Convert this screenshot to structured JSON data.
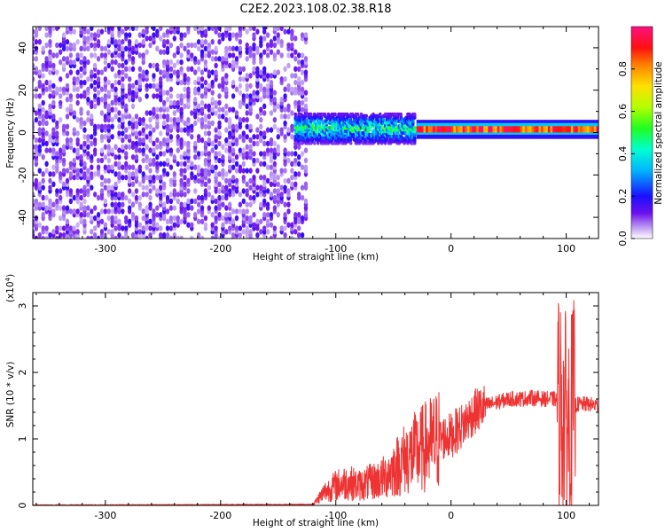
{
  "title": "C2E2.2023.108.02.38.R18",
  "chart_data": [
    {
      "type": "heatmap",
      "xlabel": "Height of straight line (km)",
      "ylabel": "Frequency (Hz)",
      "xlim": [
        -363,
        128
      ],
      "ylim": [
        -50,
        50
      ],
      "xticks": [
        -300,
        -200,
        -100,
        0,
        100
      ],
      "yticks": [
        -40,
        -20,
        0,
        20,
        40
      ],
      "colorbar": {
        "label": "Normalized spectral amplitude",
        "range": [
          0,
          1
        ],
        "ticks": [
          0.0,
          0.2,
          0.4,
          0.6,
          0.8
        ],
        "tick_labels": [
          "0.0",
          "0.2",
          "0.4",
          "0.6",
          "0.8"
        ]
      },
      "regions": [
        {
          "x": [
            -363,
            -125
          ],
          "freq": [
            -50,
            50
          ],
          "description_level": 0.1
        },
        {
          "x": [
            -135,
            -30
          ],
          "freq": [
            -5,
            9
          ],
          "description_level": 0.4
        },
        {
          "x": [
            -30,
            128
          ],
          "freq": [
            0,
            3
          ],
          "description_level": 0.95
        }
      ]
    },
    {
      "type": "line",
      "xlabel": "Height of straight line (km)",
      "ylabel": "SNR (10 * v/v)",
      "y_multiplier": "(x10^4)",
      "y_multiplier_base": "(x10",
      "y_multiplier_exp": "4",
      "y_multiplier_close": ")",
      "xlim": [
        -363,
        128
      ],
      "ylim": [
        0,
        3.2
      ],
      "xticks": [
        -300,
        -200,
        -100,
        0,
        100
      ],
      "yticks": [
        0,
        1,
        2,
        3
      ],
      "series": [
        {
          "color": "#ee3333",
          "x": [
            -363,
            -120,
            -110,
            -100,
            -90,
            -80,
            -70,
            -60,
            -50,
            -40,
            -30,
            -20,
            -10,
            0,
            10,
            20,
            30,
            40,
            50,
            60,
            70,
            80,
            90,
            95,
            100,
            103,
            106,
            110,
            120,
            128
          ],
          "y": [
            0.0,
            0.01,
            0.2,
            0.3,
            0.35,
            0.3,
            0.35,
            0.4,
            0.55,
            0.7,
            0.8,
            0.9,
            1.0,
            1.05,
            1.2,
            1.4,
            1.5,
            1.55,
            1.6,
            1.6,
            1.62,
            1.6,
            1.6,
            1.55,
            1.3,
            1.2,
            1.5,
            1.52,
            1.52,
            1.5
          ]
        }
      ]
    }
  ]
}
